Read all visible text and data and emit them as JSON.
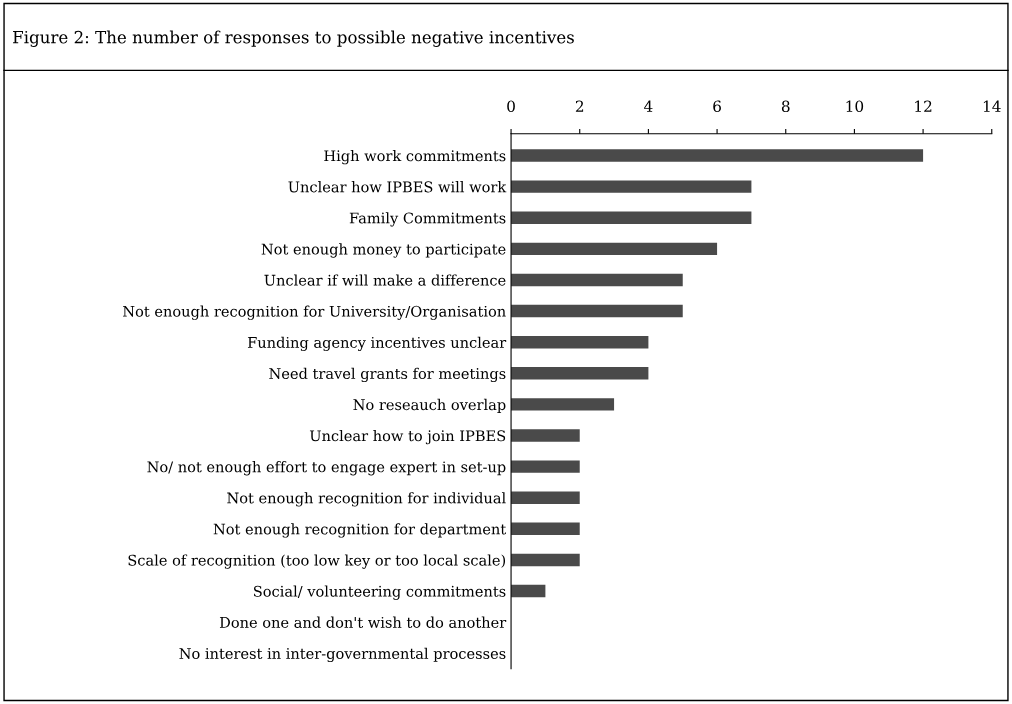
{
  "chart_data": {
    "type": "bar",
    "orientation": "horizontal",
    "title": "Figure 2: The number of responses to possible negative incentives",
    "categories": [
      "High work commitments",
      "Unclear how IPBES will work",
      "Family Commitments",
      "Not enough money to participate",
      "Unclear if will make a difference",
      "Not enough recognition for University/Organisation",
      "Funding agency incentives unclear",
      "Need travel grants for meetings",
      "No reseauch overlap",
      "Unclear how to join IPBES",
      "No/ not enough effort to engage expert in set-up",
      "Not enough recognition for individual",
      "Not enough recognition for department",
      "Scale of recognition (too low key or too local scale)",
      "Social/ volunteering commitments",
      "Done one and don't wish to do another",
      "No interest in inter-governmental processes"
    ],
    "values": [
      12,
      7,
      7,
      6,
      5,
      5,
      4,
      4,
      3,
      2,
      2,
      2,
      2,
      2,
      1,
      0,
      0
    ],
    "color": "#4a4a4a",
    "xlim": [
      0,
      14
    ],
    "xticks": [
      0,
      2,
      4,
      6,
      8,
      10,
      12,
      14
    ],
    "grid": false
  }
}
